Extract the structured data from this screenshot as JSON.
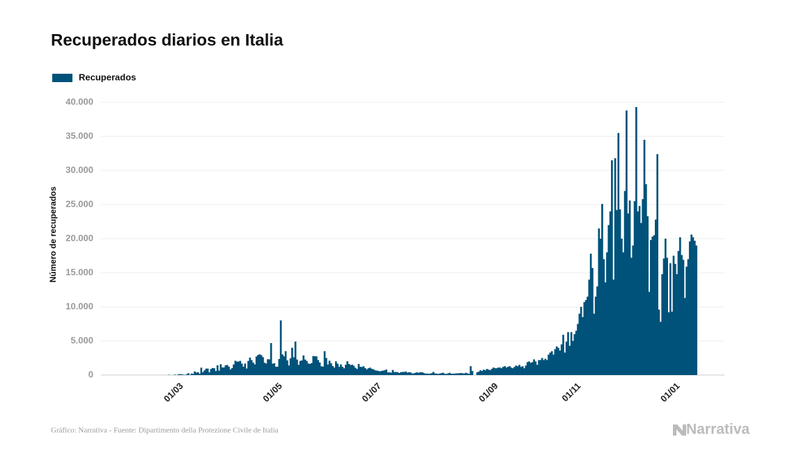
{
  "chart_data": {
    "type": "bar",
    "title": "Recuperados diarios en Italia",
    "y_label": "Número de recuperados",
    "categories": [
      null,
      null,
      null,
      null,
      null,
      null,
      "01/03",
      null,
      null,
      null,
      null,
      null,
      null,
      null,
      null,
      null,
      null,
      null,
      null,
      null,
      null,
      null,
      null,
      null,
      null,
      null,
      null,
      null,
      null,
      null,
      null,
      null,
      null,
      null,
      null,
      null,
      null,
      null,
      null,
      null,
      null,
      null,
      null,
      null,
      null,
      null,
      null,
      null,
      null,
      null,
      null,
      null,
      null,
      null,
      null,
      null,
      null,
      null,
      null,
      null,
      null,
      null,
      null,
      null,
      null,
      null,
      null,
      "01/05",
      null,
      null,
      null,
      null,
      null,
      null,
      null,
      null,
      null,
      null,
      null,
      null,
      null,
      null,
      null,
      null,
      null,
      null,
      null,
      null,
      null,
      null,
      null,
      null,
      null,
      null,
      null,
      null,
      null,
      null,
      null,
      null,
      null,
      null,
      null,
      null,
      null,
      null,
      null,
      null,
      null,
      null,
      null,
      null,
      null,
      null,
      null,
      null,
      null,
      null,
      null,
      null,
      null,
      null,
      null,
      null,
      null,
      null,
      null,
      null,
      "01/07",
      null,
      null,
      null,
      null,
      null,
      null,
      null,
      null,
      null,
      null,
      null,
      null,
      null,
      null,
      null,
      null,
      null,
      null,
      null,
      null,
      null,
      null,
      null,
      null,
      null,
      null,
      null,
      null,
      null,
      null,
      null,
      null,
      null,
      null,
      null,
      null,
      null,
      null,
      null,
      null,
      null,
      null,
      null,
      null,
      null,
      null,
      null,
      null,
      null,
      null,
      null,
      null,
      null,
      null,
      null,
      null,
      null,
      null,
      null,
      null,
      null,
      null,
      null,
      null,
      null,
      null,
      null,
      null,
      null,
      null,
      null,
      "01/09",
      null,
      null,
      null,
      null,
      null,
      null,
      null,
      null,
      null,
      null,
      null,
      null,
      null,
      null,
      null,
      null,
      null,
      null,
      null,
      null,
      null,
      null,
      null,
      null,
      null,
      null,
      null,
      null,
      null,
      null,
      null,
      null,
      null,
      null,
      null,
      null,
      null,
      null,
      null,
      null,
      null,
      null,
      null,
      null,
      null,
      null,
      null,
      null,
      null,
      null,
      "01/11",
      null,
      null,
      null,
      null,
      null,
      null,
      null,
      null,
      null,
      null,
      null,
      null,
      null,
      null,
      null,
      null,
      null,
      null,
      null,
      null,
      null,
      null,
      null,
      null,
      null,
      null,
      null,
      null,
      null,
      null,
      null,
      null,
      null,
      null,
      null,
      null,
      null,
      null,
      null,
      null,
      null,
      null,
      null,
      null,
      null,
      null,
      null,
      null,
      null,
      null,
      null,
      null,
      null,
      null,
      null,
      null,
      null,
      null,
      null,
      null,
      "01/01",
      null,
      null,
      null,
      null,
      null,
      null,
      null,
      null,
      null,
      null,
      null,
      null,
      null,
      null,
      null,
      null
    ],
    "series": [
      {
        "name": "Recuperados",
        "color": "#00527a",
        "values": [
          1,
          2,
          0,
          42,
          1,
          4,
          33,
          66,
          11,
          116,
          138,
          109,
          66,
          33,
          102,
          280,
          41,
          213,
          181,
          527,
          369,
          414,
          192,
          1084,
          415,
          689,
          943,
          952,
          408,
          894,
          1036,
          999,
          589,
          1434,
          646,
          1590,
          1109,
          1118,
          1431,
          1480,
          1238,
          819,
          1022,
          1555,
          2099,
          1979,
          1985,
          2079,
          1677,
          1224,
          1695,
          962,
          2072,
          2563,
          2200,
          1822,
          1567,
          2723,
          2943,
          3033,
          2922,
          2622,
          1808,
          1696,
          2317,
          2304,
          4693,
          1665,
          1740,
          1225,
          1231,
          2352,
          8014,
          3031,
          2747,
          3502,
          2155,
          1401,
          2452,
          4008,
          2605,
          4917,
          2280,
          1502,
          2075,
          2150,
          2881,
          2278,
          2075,
          1695,
          1639,
          1760,
          2789,
          2760,
          2737,
          2200,
          1838,
          1287,
          1240,
          3503,
          2507,
          1542,
          2103,
          1728,
          1325,
          1095,
          2010,
          1663,
          1213,
          1567,
          1226,
          995,
          1503,
          2021,
          1632,
          1467,
          1524,
          1364,
          1052,
          894,
          1633,
          1211,
          1186,
          1294,
          1018,
          836,
          1003,
          1090,
          924,
          856,
          705,
          650,
          620,
          542,
          600,
          650,
          700,
          810,
          390,
          390,
          350,
          745,
          440,
          450,
          420,
          300,
          420,
          460,
          450,
          520,
          360,
          420,
          380,
          230,
          260,
          330,
          400,
          330,
          420,
          400,
          330,
          210,
          230,
          190,
          210,
          280,
          460,
          240,
          210,
          170,
          230,
          280,
          340,
          180,
          170,
          240,
          330,
          200,
          200,
          210,
          240,
          260,
          260,
          300,
          260,
          230,
          330,
          250,
          180,
          1300,
          600,
          null,
          null,
          400,
          500,
          700,
          600,
          800,
          700,
          900,
          800,
          700,
          900,
          1100,
          1000,
          1000,
          1100,
          1100,
          1000,
          1200,
          1300,
          1100,
          1200,
          1300,
          1100,
          1000,
          1200,
          1400,
          1300,
          1500,
          1200,
          1300,
          1000,
          1400,
          1900,
          2000,
          1800,
          1900,
          2300,
          2000,
          1500,
          2200,
          2200,
          2500,
          2200,
          2400,
          2200,
          3000,
          3300,
          3500,
          3000,
          3800,
          4200,
          4000,
          3600,
          4500,
          5900,
          3300,
          4900,
          6300,
          4300,
          6300,
          5000,
          6000,
          6500,
          7500,
          9000,
          10000,
          8500,
          10700,
          11000,
          11500,
          14000,
          17800,
          15700,
          9000,
          11500,
          13000,
          21500,
          20000,
          25100,
          17000,
          13600,
          18000,
          22000,
          24000,
          31500,
          14000,
          31800,
          24200,
          35500,
          24300,
          20000,
          18000,
          27000,
          38800,
          23700,
          25600,
          17200,
          19000,
          25500,
          39300,
          24000,
          24800,
          22300,
          25800,
          34500,
          28000,
          23300,
          12200,
          19800,
          20300,
          20500,
          22800,
          32400,
          9600,
          7800,
          14800,
          17100,
          20000,
          17200,
          9200,
          16400,
          9300,
          17500,
          16300,
          14800,
          18200,
          20200,
          17600,
          16900,
          11300,
          15900,
          17000,
          19600,
          20600,
          20200,
          19700,
          19000
        ]
      }
    ],
    "ylim": [
      0,
      40000
    ],
    "yticks": [
      0,
      {
        "value": 5000,
        "label": "5.000"
      },
      {
        "value": 10000,
        "label": "10.000"
      },
      {
        "value": 15000,
        "label": "15.000"
      },
      {
        "value": 20000,
        "label": "20.000"
      },
      {
        "value": 25000,
        "label": "25.000"
      },
      {
        "value": 30000,
        "label": "30.000"
      },
      {
        "value": 35000,
        "label": "35.000"
      },
      {
        "value": 40000,
        "label": "40.000"
      }
    ],
    "grid": true
  },
  "footer": {
    "source": "Gráfico: Narrativa - Fuente: Dipartimento della Protezione Civile de Italia",
    "brand": "Narrativa"
  }
}
